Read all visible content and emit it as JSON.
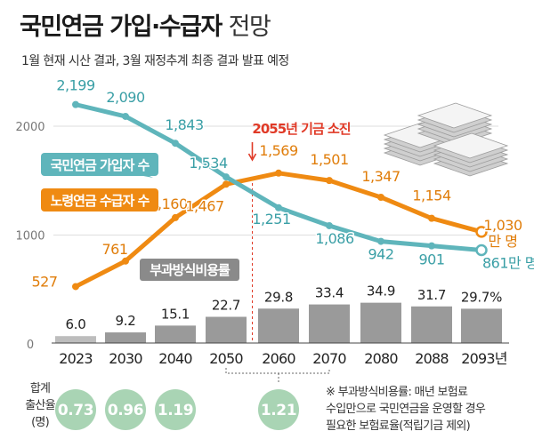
{
  "title": {
    "main": "국민연금 가입·수급자",
    "light": "전망"
  },
  "subtitle": "1월 현재 시산 결과, 3월 재정추계 최종 결과 발표 예정",
  "colors": {
    "subscribers": "#5fb5bb",
    "recipients": "#ef8a12",
    "bars": "#9a9a9a",
    "birth_circle": "#a9d4b4",
    "depletion": "#e03a27"
  },
  "chart_data": {
    "type": "bar+line",
    "categories": [
      "2023",
      "2030",
      "2040",
      "2050",
      "2060",
      "2070",
      "2080",
      "2088",
      "2093년"
    ],
    "ylim": [
      0,
      2300
    ],
    "yticks": [
      0,
      1000,
      2000
    ],
    "series": [
      {
        "name": "국민연금 가입자 수",
        "kind": "line",
        "values": [
          2199,
          2090,
          1843,
          1534,
          1251,
          1086,
          942,
          901,
          861
        ],
        "labels": [
          "2,199",
          "2,090",
          "1,843",
          "1,534",
          "1,251",
          "1,086",
          "942",
          "901",
          "861만 명"
        ]
      },
      {
        "name": "노령연금 수급자 수",
        "kind": "line",
        "values": [
          527,
          761,
          1160,
          1467,
          1569,
          1501,
          1347,
          1154,
          1030
        ],
        "labels": [
          "527",
          "761",
          "1,160",
          "1,467",
          "1,569",
          "1,501",
          "1,347",
          "1,154",
          "1,030"
        ],
        "last_unit": "만 명"
      },
      {
        "name": "부과방식비용률",
        "kind": "bar",
        "values": [
          6.0,
          9.2,
          15.1,
          22.7,
          29.8,
          33.4,
          34.9,
          31.7,
          29.7
        ],
        "labels": [
          "6.0",
          "9.2",
          "15.1",
          "22.7",
          "29.8",
          "33.4",
          "34.9",
          "31.7",
          "29.7%"
        ]
      }
    ],
    "annotation": {
      "label": "2055년 기금 소진",
      "year": 2055
    },
    "birth_rate": {
      "label_lines": [
        "합계",
        "출산율",
        "(명)"
      ],
      "values": [
        "0.73",
        "0.96",
        "1.19",
        "1.21"
      ],
      "positions": [
        "2023",
        "2030",
        "2040",
        "2050-2070"
      ]
    }
  },
  "footnote": [
    "※ 부과방식비용률: 매년 보험료",
    "수입만으로 국민연금을 운영할 경우",
    "필요한 보험료율(적립기금 제외)"
  ]
}
